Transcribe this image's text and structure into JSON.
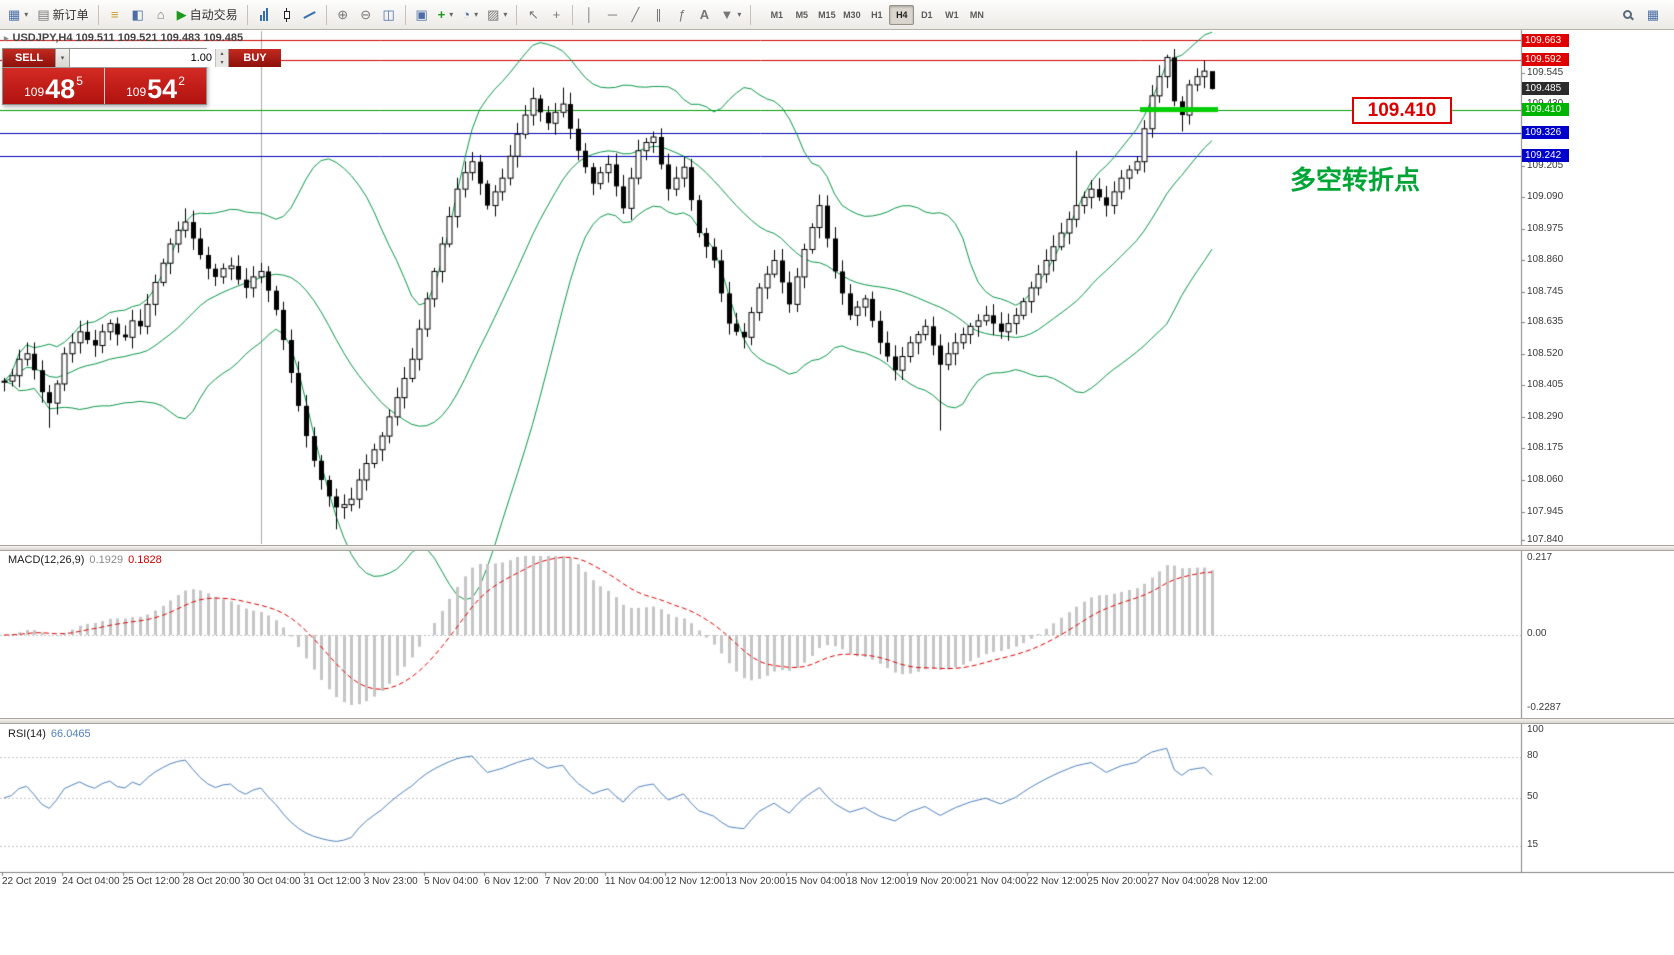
{
  "app": {
    "symbol_header": "USDJPY,H4 109.511 109.521 109.483 109.485",
    "toolbar": {
      "new_order_label": "新订单",
      "autotrading_label": "自动交易",
      "timeframes": [
        "M1",
        "M5",
        "M15",
        "M30",
        "H1",
        "H4",
        "D1",
        "W1",
        "MN"
      ],
      "active_timeframe": "H4"
    },
    "one_click": {
      "sell_label": "SELL",
      "buy_label": "BUY",
      "volume": "1.00",
      "sell_price_int": "109",
      "sell_price_big": "48",
      "sell_price_sup": "5",
      "buy_price_int": "109",
      "buy_price_big": "54",
      "buy_price_sup": "2"
    },
    "icons": {
      "new_chart": "▦",
      "new_order": "▤",
      "market_watch": "≡",
      "data_window": "◧",
      "navigator": "⌂",
      "autotrading": "▶",
      "zoom_in": "⊕",
      "zoom_out": "⊖",
      "tile_windows": "◫",
      "cascade_windows": "▣",
      "indicators": "+",
      "periods": "◔",
      "templates": "▨",
      "cursor": "↖",
      "crosshair": "+",
      "vertical_line": "│",
      "horizontal_line": "─",
      "trendline": "╱",
      "channel": "∥",
      "fibonacci": "ƒ",
      "text_tool": "A",
      "arrows_tool": "▼",
      "dropdown": "▾",
      "spin_up": "▴",
      "spin_down": "▾",
      "chart_window": "▦"
    }
  },
  "annotations": {
    "level_box": "109.410",
    "turning_point": "多空转折点"
  },
  "chart_data": [
    {
      "type": "candlestick",
      "title": "USDJPY H4",
      "price_axis": {
        "min": 107.823,
        "max": 109.7,
        "ticks": [
          "109.545",
          "109.430",
          "109.205",
          "109.090",
          "108.975",
          "108.860",
          "108.745",
          "108.635",
          "108.520",
          "108.405",
          "108.290",
          "108.175",
          "108.060",
          "107.945",
          "107.840"
        ]
      },
      "candles": {
        "closes": [
          108.42,
          108.44,
          108.5,
          108.52,
          108.46,
          108.38,
          108.34,
          108.41,
          108.52,
          108.56,
          108.6,
          108.57,
          108.55,
          108.6,
          108.63,
          108.59,
          108.58,
          108.64,
          108.62,
          108.7,
          108.78,
          108.85,
          108.92,
          108.97,
          109.0,
          108.94,
          108.88,
          108.83,
          108.8,
          108.83,
          108.84,
          108.79,
          108.76,
          108.8,
          108.82,
          108.75,
          108.68,
          108.57,
          108.45,
          108.33,
          108.22,
          108.13,
          108.06,
          108.0,
          107.96,
          107.97,
          107.99,
          108.06,
          108.12,
          108.17,
          108.22,
          108.29,
          108.36,
          108.43,
          108.5,
          108.61,
          108.72,
          108.82,
          108.92,
          109.02,
          109.12,
          109.18,
          109.22,
          109.14,
          109.06,
          109.11,
          109.16,
          109.24,
          109.32,
          109.39,
          109.45,
          109.4,
          109.36,
          109.4,
          109.43,
          109.34,
          109.26,
          109.2,
          109.14,
          109.18,
          109.21,
          109.13,
          109.05,
          109.16,
          109.26,
          109.29,
          109.31,
          109.21,
          109.12,
          109.16,
          109.2,
          109.08,
          108.96,
          108.91,
          108.86,
          108.74,
          108.63,
          108.6,
          108.58,
          108.67,
          108.76,
          108.81,
          108.86,
          108.78,
          108.7,
          108.8,
          108.9,
          108.98,
          109.06,
          108.94,
          108.82,
          108.74,
          108.66,
          108.69,
          108.72,
          108.64,
          108.56,
          108.51,
          108.46,
          108.51,
          108.56,
          108.59,
          108.62,
          108.55,
          108.48,
          108.52,
          108.56,
          108.59,
          108.62,
          108.64,
          108.66,
          108.63,
          108.6,
          108.63,
          108.66,
          108.71,
          108.76,
          108.81,
          108.86,
          108.91,
          108.96,
          109.01,
          109.06,
          109.09,
          109.12,
          109.09,
          109.06,
          109.11,
          109.16,
          109.19,
          109.22,
          109.34,
          109.46,
          109.53,
          109.6,
          109.44,
          109.39,
          109.5,
          109.53,
          109.55,
          109.485
        ],
        "wick_overrides": {
          "6": {
            "low": 108.25
          },
          "24": {
            "high": 109.05
          },
          "44": {
            "low": 107.88
          },
          "70": {
            "high": 109.49
          },
          "74": {
            "high": 109.49
          },
          "84": {
            "high": 109.3
          },
          "108": {
            "high": 109.1
          },
          "124": {
            "low": 108.24
          },
          "142": {
            "high": 109.26
          },
          "154": {
            "high": 109.61
          },
          "156": {
            "low": 109.33
          },
          "160": {
            "high": 109.521,
            "low": 109.483
          }
        }
      },
      "bollinger": {
        "period": 20,
        "deviation": 2,
        "color": "#0a9648"
      },
      "hlines": [
        {
          "price": 109.663,
          "color": "#cc0000"
        },
        {
          "price": 109.592,
          "color": "#cc0000"
        },
        {
          "price": 109.41,
          "color": "#009e00"
        },
        {
          "price": 109.326,
          "color": "#0000bb"
        },
        {
          "price": 109.242,
          "color": "#0000bb"
        }
      ],
      "price_tags": [
        {
          "value": "109.663",
          "bg": "#e00000"
        },
        {
          "value": "109.592",
          "bg": "#e00000"
        },
        {
          "value": "109.485",
          "bg": "#2b2b2b"
        },
        {
          "value": "109.410",
          "bg": "#00b400"
        },
        {
          "value": "109.326",
          "bg": "#0000cc"
        },
        {
          "value": "109.242",
          "bg": "#0000cc"
        }
      ],
      "green_zone": {
        "from_index": 151,
        "to_index": 160,
        "price": 109.41,
        "color": "#00ce00"
      },
      "vline_index": 34,
      "time_labels": [
        "22 Oct 2019",
        "24 Oct 04:00",
        "25 Oct 12:00",
        "28 Oct 20:00",
        "30 Oct 04:00",
        "31 Oct 12:00",
        "3 Nov 23:00",
        "5 Nov 04:00",
        "6 Nov 12:00",
        "7 Nov 20:00",
        "11 Nov 04:00",
        "12 Nov 12:00",
        "13 Nov 20:00",
        "15 Nov 04:00",
        "18 Nov 12:00",
        "19 Nov 20:00",
        "21 Nov 04:00",
        "22 Nov 12:00",
        "25 Nov 20:00",
        "27 Nov 04:00",
        "28 Nov 12:00"
      ]
    },
    {
      "type": "macd",
      "label": "MACD(12,26,9)",
      "value_main": "0.1929",
      "value_signal": "0.1828",
      "params": {
        "fast": 12,
        "slow": 26,
        "signal": 9
      },
      "scale": {
        "top": "0.217",
        "zero": "0.00",
        "bottom": "-0.2287"
      }
    },
    {
      "type": "rsi",
      "label": "RSI(14)",
      "value": "66.0465",
      "period": 14,
      "levels": [
        80,
        50,
        15
      ],
      "scale_labels": [
        "100",
        "80",
        "50",
        "15"
      ]
    }
  ]
}
